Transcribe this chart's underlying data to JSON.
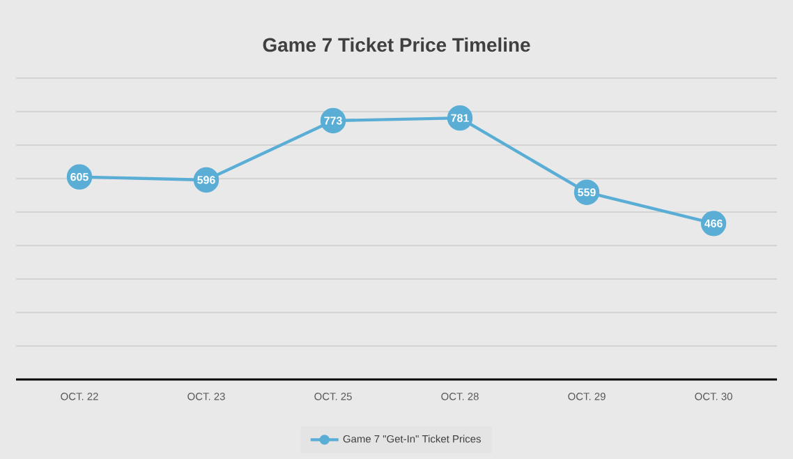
{
  "chart_data": {
    "type": "line",
    "title": "Game 7 Ticket Price Timeline",
    "categories": [
      "OCT. 22",
      "OCT. 23",
      "OCT. 25",
      "OCT. 28",
      "OCT. 29",
      "OCT. 30"
    ],
    "series": [
      {
        "name": "Game 7 \"Get-In\" Ticket Prices",
        "color": "#5aaed6",
        "values": [
          605,
          596,
          773,
          781,
          559,
          466
        ]
      }
    ],
    "ylim": [
      0,
      900
    ],
    "yticks": [
      {
        "value": 0,
        "label": null
      },
      {
        "value": 100,
        "label": null
      },
      {
        "value": 200,
        "label": null
      },
      {
        "value": 300,
        "label": null
      },
      {
        "value": 400,
        "label": null
      },
      {
        "value": 500,
        "label": null
      },
      {
        "value": 600,
        "label": null
      },
      {
        "value": 700,
        "label": null
      },
      {
        "value": 800,
        "label": null
      },
      {
        "value": 900,
        "label": null
      }
    ],
    "tick_labels": "x",
    "grid": "y",
    "legend": "bottom",
    "marker": "circle",
    "line_style": "solid",
    "data_labels": true
  }
}
